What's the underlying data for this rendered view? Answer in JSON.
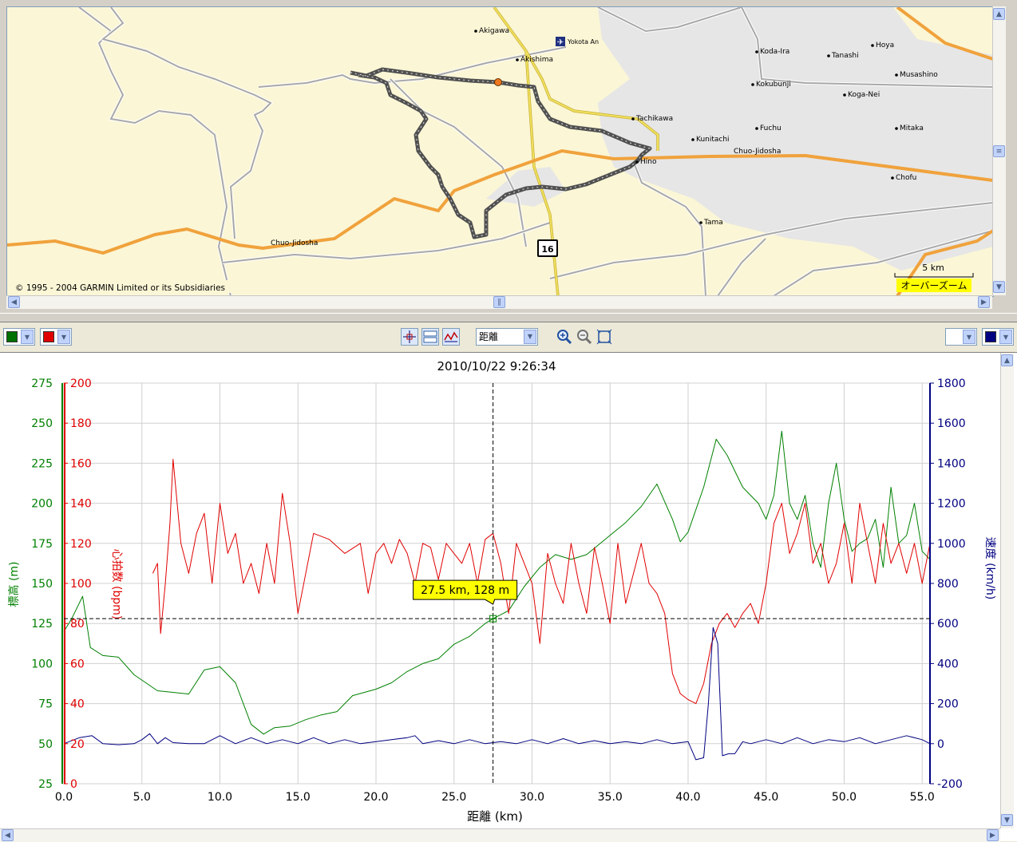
{
  "map": {
    "copyright": "© 1995 - 2004 GARMIN Limited or its Subsidiaries",
    "scale_label": "5 km",
    "overzoom_label": "オーバーズーム",
    "road_shield": "16",
    "places": [
      {
        "name": "Akigawa"
      },
      {
        "name": "Yokota An"
      },
      {
        "name": "Akishima"
      },
      {
        "name": "Koda-Ira"
      },
      {
        "name": "Tanashi"
      },
      {
        "name": "Hoya"
      },
      {
        "name": "Musashino"
      },
      {
        "name": "Kokubunji"
      },
      {
        "name": "Koga-Nei"
      },
      {
        "name": "Tachikawa"
      },
      {
        "name": "Kunitachi"
      },
      {
        "name": "Fuchu"
      },
      {
        "name": "Mitaka"
      },
      {
        "name": "Chuo-Jidosha"
      },
      {
        "name": "Hino"
      },
      {
        "name": "Chofu"
      },
      {
        "name": "Tama"
      },
      {
        "name": "Chuo-Jidosha"
      }
    ],
    "colors": {
      "land": "#fbf6d6",
      "urban": "#e6e6e6",
      "highway": "#f0a23c",
      "road": "#a8a8a8",
      "minor": "#f0e060",
      "track": "#505050",
      "cursor": "#f07820"
    }
  },
  "toolbar": {
    "left_color_1": "#007000",
    "left_color_2": "#e00000",
    "right_color_1": "#ffffff",
    "right_color_2": "#000080",
    "x_axis_select": "距離",
    "icons": [
      "crosshair-icon",
      "split-view-icon",
      "graph-icon",
      "zoom-in-icon",
      "zoom-out-icon",
      "fit-icon"
    ]
  },
  "chart_data": {
    "type": "line",
    "title": "2010/10/22 9:26:34",
    "xlabel": "距離 (km)",
    "xlim": [
      0,
      55.5
    ],
    "x_ticks": [
      "0.0",
      "5.0",
      "10.0",
      "15.0",
      "20.0",
      "25.0",
      "30.0",
      "35.0",
      "40.0",
      "45.0",
      "50.0",
      "55.0"
    ],
    "axes": {
      "elevation": {
        "label": "標高 (m)",
        "lim": [
          25,
          275
        ],
        "ticks": [
          "25",
          "50",
          "75",
          "100",
          "125",
          "150",
          "175",
          "200",
          "225",
          "250",
          "275"
        ],
        "color": "#008000"
      },
      "heart_rate": {
        "label": "心拍数 (bpm)",
        "lim": [
          0,
          200
        ],
        "ticks": [
          "0",
          "20",
          "40",
          "60",
          "80",
          "100",
          "120",
          "140",
          "160",
          "180",
          "200"
        ],
        "color": "#e00000"
      },
      "speed": {
        "label": "速度 (km/h)",
        "lim": [
          -200,
          1800
        ],
        "ticks": [
          "-200",
          "0",
          "200",
          "400",
          "600",
          "800",
          "1000",
          "1200",
          "1400",
          "1600",
          "1800"
        ],
        "color": "#000080"
      }
    },
    "cursor": {
      "x": 27.5,
      "y": 128,
      "label": "27.5 km, 128 m"
    },
    "grid": true,
    "series": [
      {
        "name": "標高 (m)",
        "axis": "elevation",
        "color": "#008000",
        "x": [
          0,
          0.5,
          1.2,
          1.7,
          2.5,
          3.5,
          4.5,
          6,
          7,
          8,
          9,
          10,
          11,
          12,
          12.8,
          13.5,
          14.5,
          15.5,
          16.5,
          17.5,
          18.5,
          20,
          21,
          22,
          23,
          24,
          25,
          26,
          27,
          27.5,
          28.5,
          29.5,
          30.5,
          31.5,
          32.5,
          33.5,
          35,
          36,
          37,
          38,
          39,
          39.5,
          40,
          41,
          41.8,
          42.5,
          43.5,
          44.5,
          45,
          45.5,
          46,
          46.5,
          47,
          47.5,
          48,
          48.5,
          49,
          49.5,
          50,
          50.5,
          51,
          51.5,
          52,
          52.5,
          53,
          53.5,
          54,
          54.5,
          55,
          55.5
        ],
        "y": [
          120,
          128,
          142,
          110,
          105,
          104,
          93,
          83,
          82,
          81,
          96,
          98,
          88,
          62,
          56,
          60,
          61,
          65,
          68,
          70,
          80,
          84,
          88,
          95,
          100,
          103,
          112,
          117,
          125,
          128,
          133,
          148,
          160,
          168,
          165,
          168,
          180,
          188,
          198,
          212,
          190,
          176,
          182,
          210,
          240,
          230,
          210,
          200,
          190,
          205,
          245,
          200,
          190,
          205,
          175,
          160,
          200,
          225,
          190,
          170,
          175,
          178,
          190,
          160,
          210,
          175,
          180,
          200,
          170,
          165
        ]
      },
      {
        "name": "心拍数 (bpm)",
        "axis": "heart_rate",
        "color": "#e00000",
        "x": [
          5.7,
          6,
          6.2,
          6.5,
          6.8,
          7,
          7.5,
          8,
          8.5,
          9,
          9.5,
          10,
          10.5,
          11,
          11.5,
          12,
          12.5,
          13,
          13.5,
          14,
          14.5,
          15,
          16,
          17,
          18,
          19,
          19.5,
          20,
          20.5,
          21,
          21.5,
          22,
          22.5,
          23,
          23.5,
          24,
          24.5,
          25,
          25.5,
          26,
          26.5,
          27,
          27.5,
          28,
          28.5,
          29,
          29.5,
          30,
          30.5,
          31,
          31.5,
          32,
          32.5,
          33,
          33.5,
          34,
          34.5,
          35,
          35.5,
          36,
          36.5,
          37,
          37.5,
          38,
          38.5,
          39,
          39.5,
          40,
          40.5,
          41,
          41.5,
          42,
          42.5,
          43,
          43.5,
          44,
          44.5,
          45,
          45.5,
          46,
          46.5,
          47,
          47.5,
          48,
          48.5,
          49,
          49.5,
          50,
          50.5,
          51,
          51.5,
          52,
          52.5,
          53,
          53.5,
          54,
          54.5,
          55,
          55.5
        ],
        "y": [
          105,
          110,
          75,
          100,
          130,
          162,
          120,
          105,
          125,
          135,
          100,
          140,
          115,
          125,
          100,
          110,
          95,
          120,
          100,
          145,
          120,
          85,
          125,
          122,
          115,
          120,
          95,
          115,
          120,
          110,
          122,
          115,
          100,
          120,
          118,
          102,
          120,
          115,
          110,
          120,
          100,
          122,
          125,
          110,
          85,
          120,
          110,
          100,
          70,
          115,
          100,
          90,
          120,
          100,
          85,
          118,
          100,
          80,
          120,
          90,
          105,
          120,
          100,
          95,
          85,
          55,
          45,
          42,
          40,
          50,
          70,
          80,
          85,
          78,
          85,
          90,
          80,
          100,
          130,
          140,
          115,
          125,
          140,
          110,
          120,
          100,
          110,
          130,
          100,
          140,
          120,
          100,
          130,
          110,
          120,
          105,
          120,
          100,
          120
        ]
      },
      {
        "name": "速度 (km/h)",
        "axis": "speed",
        "color": "#000080",
        "x": [
          0,
          1,
          1.8,
          2.5,
          3.5,
          4.5,
          5,
          5.5,
          6,
          6.5,
          7,
          8,
          9,
          10,
          11,
          12,
          13,
          14,
          15,
          16,
          17,
          18,
          19,
          20,
          21,
          22,
          22.5,
          23,
          24,
          25,
          26,
          27,
          28,
          29,
          30,
          31,
          32,
          33,
          34,
          35,
          36,
          37,
          38,
          39,
          40,
          40.5,
          41,
          41.3,
          41.6,
          41.9,
          42.2,
          42.6,
          43,
          43.5,
          44,
          45,
          46,
          47,
          48,
          49,
          50,
          51,
          52,
          53,
          54,
          55,
          55.5
        ],
        "y": [
          0,
          30,
          40,
          0,
          -5,
          0,
          20,
          50,
          0,
          30,
          5,
          0,
          0,
          40,
          0,
          30,
          0,
          20,
          0,
          30,
          0,
          20,
          0,
          10,
          20,
          30,
          40,
          0,
          15,
          0,
          20,
          0,
          10,
          0,
          20,
          0,
          25,
          0,
          15,
          0,
          10,
          0,
          20,
          0,
          10,
          -80,
          -70,
          200,
          580,
          500,
          -60,
          -50,
          -50,
          10,
          0,
          20,
          0,
          30,
          0,
          20,
          10,
          30,
          0,
          20,
          40,
          20,
          0
        ]
      }
    ]
  }
}
